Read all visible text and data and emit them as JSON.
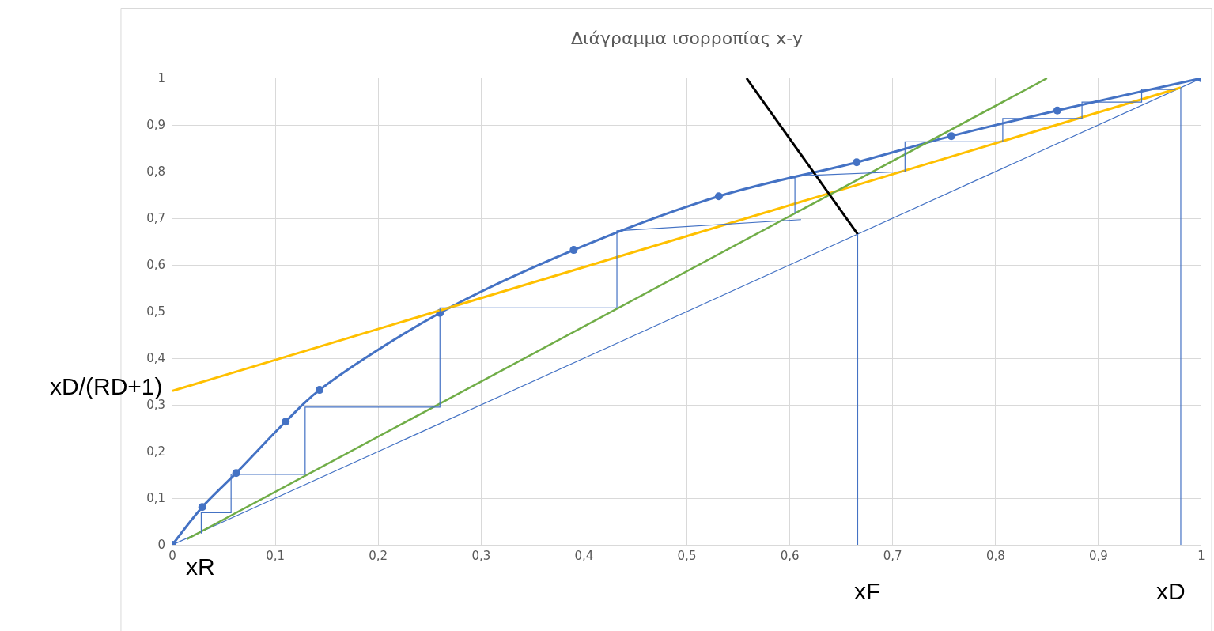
{
  "chart_data": {
    "type": "line",
    "title": "Διάγραμμα ισορροπίας x-y",
    "xlim": [
      0,
      1
    ],
    "ylim": [
      0,
      1
    ],
    "xticks": [
      0,
      {
        "value": 0.1,
        "label": "0,1"
      },
      {
        "value": 0.2,
        "label": "0,2"
      },
      {
        "value": 0.3,
        "label": "0,3"
      },
      {
        "value": 0.4,
        "label": "0,4"
      },
      {
        "value": 0.5,
        "label": "0,5"
      },
      {
        "value": 0.6,
        "label": "0,6"
      },
      {
        "value": 0.7,
        "label": "0,7"
      },
      {
        "value": 0.8,
        "label": "0,8"
      },
      {
        "value": 0.9,
        "label": "0,9"
      },
      1
    ],
    "yticks": [
      0,
      {
        "value": 0.1,
        "label": "0,1"
      },
      {
        "value": 0.2,
        "label": "0,2"
      },
      {
        "value": 0.3,
        "label": "0,3"
      },
      {
        "value": 0.4,
        "label": "0,4"
      },
      {
        "value": 0.5,
        "label": "0,5"
      },
      {
        "value": 0.6,
        "label": "0,6"
      },
      {
        "value": 0.7,
        "label": "0,7"
      },
      {
        "value": 0.8,
        "label": "0,8"
      },
      {
        "value": 0.9,
        "label": "0,9"
      },
      1
    ],
    "grid": true,
    "series": [
      {
        "color": "#4472c4",
        "marker": "circle",
        "x": [
          0,
          0.029,
          0.062,
          0.11,
          0.143,
          0.26,
          0.39,
          0.531,
          0.665,
          0.757,
          0.86,
          1
        ],
        "values": [
          0,
          0.081,
          0.154,
          0.264,
          0.332,
          0.497,
          0.632,
          0.747,
          0.82,
          0.876,
          0.931,
          1
        ]
      },
      {
        "color": "#4472c4",
        "marker": "none",
        "x": [
          0,
          1
        ],
        "values": [
          0,
          1
        ]
      },
      {
        "color": "#ffc000",
        "marker": "none",
        "x": [
          0,
          0.98
        ],
        "values": [
          0.33,
          0.98
        ]
      },
      {
        "color": "#70ad47",
        "marker": "none",
        "x": [
          0.014,
          0.85
        ],
        "values": [
          0.012,
          1.0
        ]
      },
      {
        "color": "#000000",
        "marker": "none",
        "x": [
          0.558,
          0.666
        ],
        "values": [
          1.0,
          0.666
        ]
      },
      {
        "color": "#4472c4",
        "marker": "none",
        "x": [
          0.666,
          0.666,
          null,
          0.98,
          0.98
        ],
        "values": [
          0,
          0.666,
          null,
          0,
          0.98
        ]
      },
      {
        "color": "#4472c4",
        "marker": "none",
        "x": [
          0.975,
          0.942,
          0.942,
          0.884,
          0.884,
          0.807,
          0.807,
          0.712,
          0.712,
          0.6,
          0.605,
          0.605,
          null,
          0.611,
          0.432,
          0.432,
          0.26,
          0.26,
          0.129,
          0.129,
          0.057,
          0.057,
          0.028,
          0.028
        ],
        "values": [
          0.976,
          0.976,
          0.949,
          0.949,
          0.914,
          0.914,
          0.864,
          0.864,
          0.8,
          0.79,
          0.786,
          0.71,
          null,
          0.697,
          0.673,
          0.508,
          0.508,
          0.295,
          0.295,
          0.151,
          0.151,
          0.069,
          0.069,
          0.024
        ]
      }
    ],
    "annotations": [
      "xR",
      {
        "text": "xF",
        "x": 0.666,
        "y": 0
      },
      {
        "text": "xD",
        "x": 0.98,
        "y": 0
      },
      "xD/(RD+1)"
    ]
  }
}
